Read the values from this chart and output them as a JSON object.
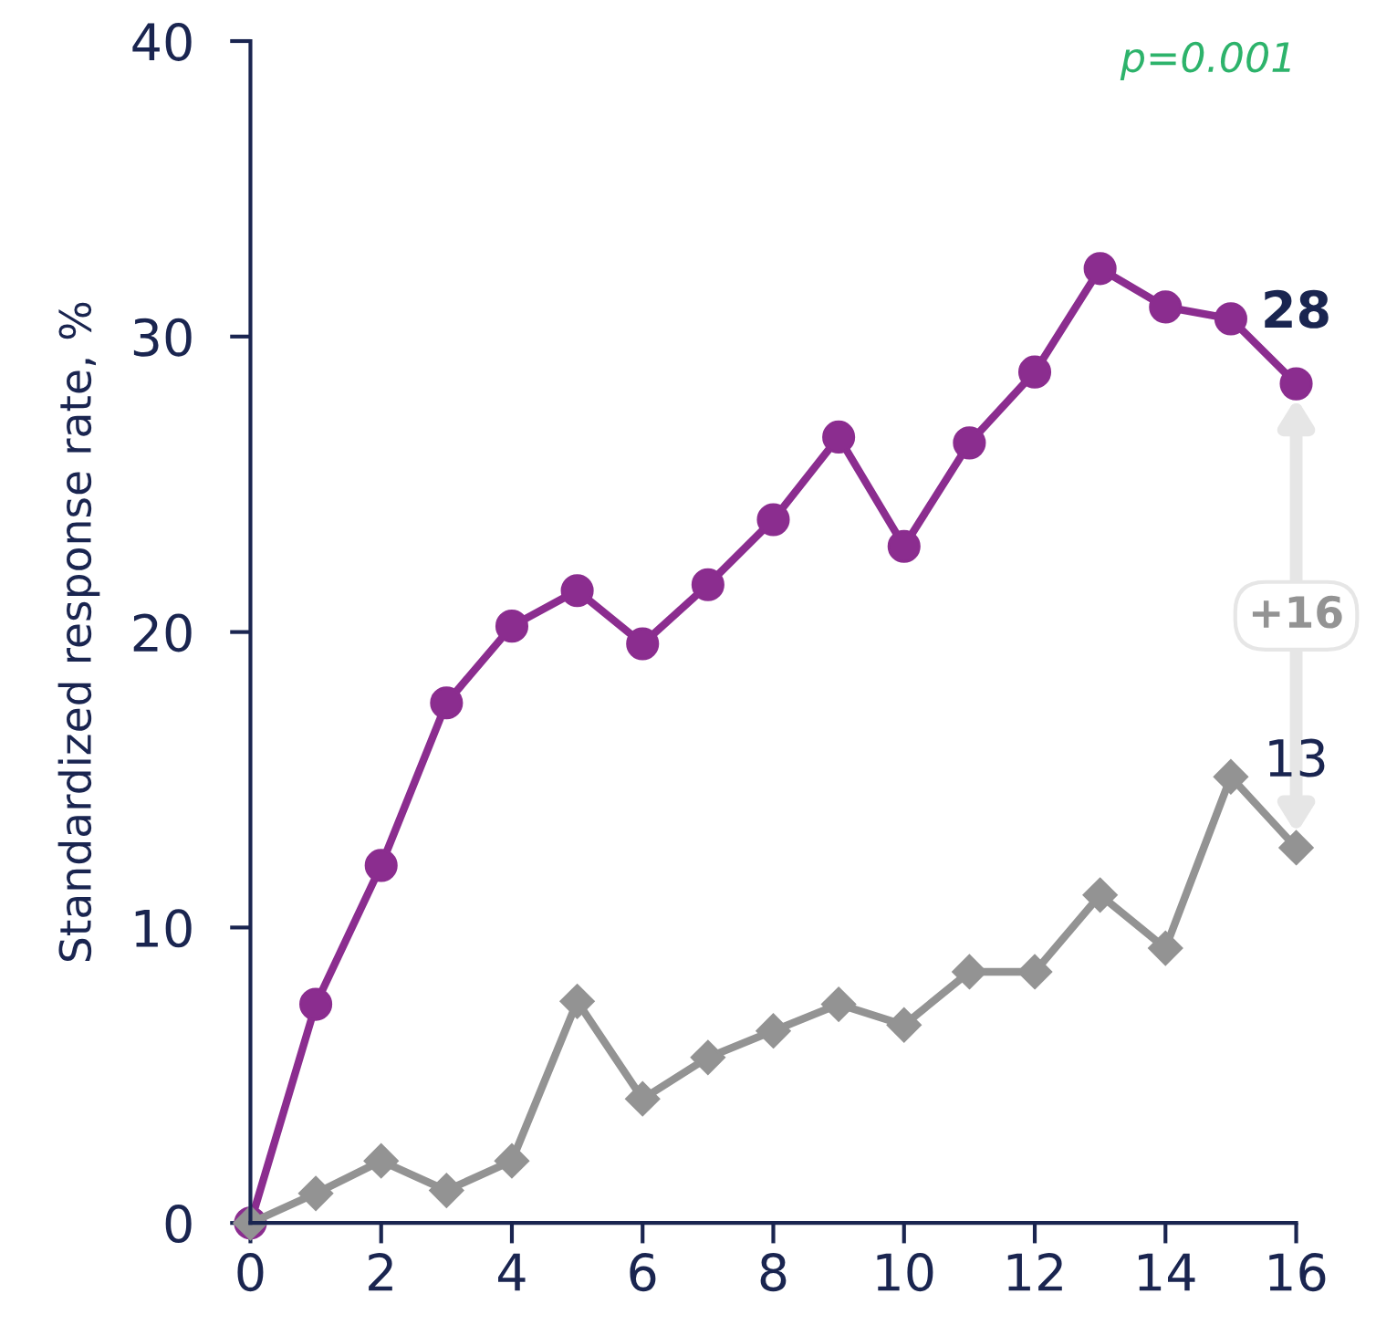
{
  "chart_data": {
    "type": "line",
    "ylabel": "Standardized response rate, %",
    "x": [
      0,
      1,
      2,
      3,
      4,
      5,
      6,
      7,
      8,
      9,
      10,
      11,
      12,
      13,
      14,
      15,
      16
    ],
    "series": [
      {
        "color": "#8b2d8f",
        "marker": "circle",
        "values": [
          0,
          7.4,
          12.1,
          17.6,
          20.2,
          21.4,
          19.6,
          21.6,
          23.8,
          26.6,
          22.9,
          26.4,
          28.8,
          32.3,
          31.0,
          30.6,
          28.4
        ]
      },
      {
        "color": "#939393",
        "marker": "diamond",
        "values": [
          0,
          1.0,
          2.1,
          1.1,
          2.1,
          7.5,
          4.2,
          5.6,
          6.5,
          7.4,
          6.7,
          8.5,
          8.5,
          11.1,
          9.3,
          15.1,
          12.7
        ]
      }
    ],
    "xlim": [
      0,
      16
    ],
    "xticks": [
      0,
      2,
      4,
      6,
      8,
      10,
      12,
      14,
      16
    ],
    "ylim": [
      0,
      40
    ],
    "yticks": [
      0,
      10,
      20,
      30,
      40
    ],
    "grid": false,
    "line_style": "solid",
    "annotations": [
      {
        "text": "28",
        "x": 16,
        "y": 28.4
      },
      {
        "text": "13",
        "x": 16,
        "y": 12.7
      },
      "+16",
      "p=0.001"
    ]
  }
}
